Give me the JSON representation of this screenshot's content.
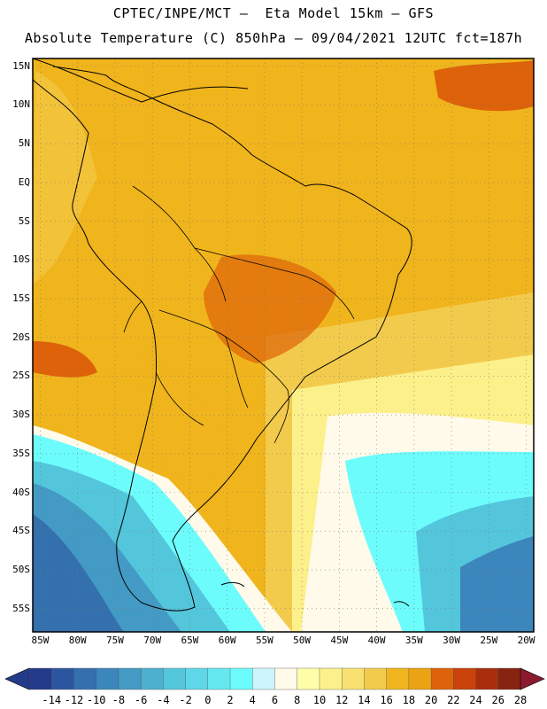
{
  "header": {
    "line1": "CPTEC/INPE/MCT –  Eta Model 15km – GFS",
    "line2": "Absolute Temperature (C) 850hPa – 09/04/2021 12UTC fct=187h"
  },
  "map": {
    "lat_labels": [
      "15N",
      "10N",
      "5N",
      "EQ",
      "5S",
      "10S",
      "15S",
      "20S",
      "25S",
      "30S",
      "35S",
      "40S",
      "45S",
      "50S",
      "55S"
    ],
    "lat_values": [
      15,
      10,
      5,
      0,
      -5,
      -10,
      -15,
      -20,
      -25,
      -30,
      -35,
      -40,
      -45,
      -50,
      -55
    ],
    "lon_labels": [
      "85W",
      "80W",
      "75W",
      "70W",
      "65W",
      "60W",
      "55W",
      "50W",
      "45W",
      "40W",
      "35W",
      "30W",
      "25W",
      "20W"
    ],
    "lon_values": [
      -85,
      -80,
      -75,
      -70,
      -65,
      -60,
      -55,
      -50,
      -45,
      -40,
      -35,
      -30,
      -25,
      -20
    ],
    "extent": {
      "lon_min": -86,
      "lon_max": -19,
      "lat_min": -58,
      "lat_max": 16
    }
  },
  "colorbar": {
    "labels": [
      "-14",
      "-12",
      "-10",
      "-8",
      "-6",
      "-4",
      "-2",
      "0",
      "2",
      "4",
      "6",
      "8",
      "10",
      "12",
      "14",
      "16",
      "18",
      "20",
      "22",
      "24",
      "26",
      "28"
    ],
    "colors": [
      "#233b8a",
      "#2b559e",
      "#3470ae",
      "#3b86bd",
      "#439ac5",
      "#4cb0cf",
      "#54c6dc",
      "#5ed8e8",
      "#66e8f0",
      "#6cfcfc",
      "#ccf6fb",
      "#fffaea",
      "#fefea9",
      "#fbf08a",
      "#f8e170",
      "#f3cb4c",
      "#f0b41c",
      "#eba314",
      "#dd6209",
      "#c8420a",
      "#a82d0c",
      "#862311"
    ],
    "under_color": "#233b8a",
    "over_color": "#8b1a2e"
  }
}
